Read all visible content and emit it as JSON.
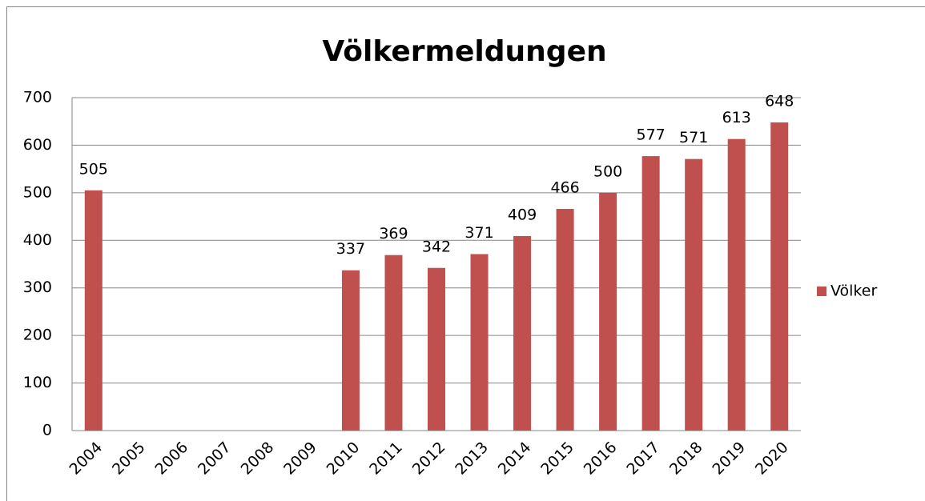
{
  "chart_data": {
    "type": "bar",
    "title": "Völkermeldungen",
    "categories": [
      "2004",
      "2005",
      "2006",
      "2007",
      "2008",
      "2009",
      "2010",
      "2011",
      "2012",
      "2013",
      "2014",
      "2015",
      "2016",
      "2017",
      "2018",
      "2019",
      "2020"
    ],
    "series": [
      {
        "name": "Völker",
        "color": "#c0504d",
        "values": [
          505,
          null,
          null,
          null,
          null,
          null,
          337,
          369,
          342,
          371,
          409,
          466,
          500,
          577,
          571,
          613,
          648
        ]
      }
    ],
    "ylim": [
      0,
      700
    ],
    "yticks": [
      0,
      100,
      200,
      300,
      400,
      500,
      600,
      700
    ],
    "grid": true,
    "legend": "right",
    "data_labels": true
  }
}
